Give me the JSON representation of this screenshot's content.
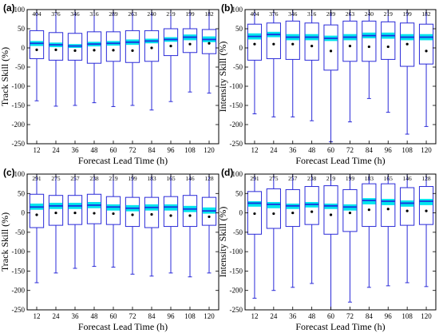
{
  "colors": {
    "box": "#2a2ad8",
    "iqr_band": "#00e5ee",
    "median": "#1a33dd",
    "mean": "#000000",
    "axis": "#000000"
  },
  "chart_data": [
    {
      "panel": "(a)",
      "type": "box",
      "xlabel": "Forecast Lead Time (h)",
      "ylabel": "Track Skill (%)",
      "ylim": [
        -250,
        100
      ],
      "yticks": [
        -250,
        -200,
        -150,
        -100,
        -50,
        0,
        50,
        100
      ],
      "categories": [
        "12",
        "24",
        "36",
        "48",
        "60",
        "72",
        "84",
        "96",
        "108",
        "120"
      ],
      "counts": [
        "404",
        "376",
        "346",
        "316",
        "289",
        "263",
        "240",
        "219",
        "199",
        "182"
      ],
      "whisker_max": [
        100,
        100,
        100,
        100,
        100,
        100,
        100,
        100,
        100,
        100
      ],
      "q3": [
        45,
        40,
        38,
        42,
        42,
        45,
        45,
        50,
        50,
        48
      ],
      "median": [
        12,
        8,
        5,
        10,
        12,
        15,
        18,
        22,
        28,
        22
      ],
      "q1": [
        -28,
        -32,
        -32,
        -40,
        -35,
        -38,
        -35,
        -20,
        -12,
        -15
      ],
      "whisker_min": [
        -138,
        -152,
        -150,
        -143,
        -153,
        -150,
        -162,
        -140,
        -115,
        -118
      ],
      "mean": [
        -5,
        -5,
        -7,
        -6,
        -6,
        -7,
        0,
        5,
        10,
        12
      ],
      "band": [
        [
          5,
          18
        ],
        [
          2,
          14
        ],
        [
          0,
          10
        ],
        [
          4,
          16
        ],
        [
          6,
          18
        ],
        [
          8,
          22
        ],
        [
          12,
          24
        ],
        [
          16,
          28
        ],
        [
          20,
          35
        ],
        [
          15,
          30
        ]
      ]
    },
    {
      "panel": "(b)",
      "type": "box",
      "xlabel": "Forecast Lead Time (h)",
      "ylabel": "Intensity Skill (%)",
      "ylim": [
        -250,
        100
      ],
      "yticks": [
        -250,
        -200,
        -150,
        -100,
        -50,
        0,
        50,
        100
      ],
      "categories": [
        "12",
        "24",
        "36",
        "48",
        "60",
        "72",
        "84",
        "96",
        "108",
        "120"
      ],
      "counts": [
        "404",
        "376",
        "346",
        "316",
        "289",
        "263",
        "240",
        "219",
        "199",
        "182"
      ],
      "whisker_max": [
        100,
        100,
        100,
        100,
        100,
        100,
        100,
        100,
        100,
        100
      ],
      "q3": [
        62,
        65,
        70,
        65,
        60,
        70,
        70,
        68,
        65,
        62
      ],
      "median": [
        30,
        35,
        28,
        28,
        25,
        28,
        32,
        32,
        28,
        28
      ],
      "q1": [
        -32,
        -28,
        -30,
        -32,
        -58,
        -35,
        -35,
        -30,
        -48,
        -42
      ],
      "whisker_min": [
        -172,
        -180,
        -180,
        -190,
        -245,
        -193,
        -132,
        -168,
        -225,
        -205
      ],
      "mean": [
        10,
        10,
        10,
        5,
        -8,
        5,
        3,
        3,
        10,
        -8
      ],
      "band": [
        [
          22,
          38
        ],
        [
          28,
          42
        ],
        [
          20,
          36
        ],
        [
          20,
          36
        ],
        [
          18,
          32
        ],
        [
          20,
          36
        ],
        [
          25,
          40
        ],
        [
          24,
          40
        ],
        [
          20,
          36
        ],
        [
          20,
          36
        ]
      ]
    },
    {
      "panel": "(c)",
      "type": "box",
      "xlabel": "Forecast Lead Time (h)",
      "ylabel": "Track Skill (%)",
      "ylim": [
        -250,
        100
      ],
      "yticks": [
        -250,
        -200,
        -150,
        -100,
        -50,
        0,
        50,
        100
      ],
      "categories": [
        "12",
        "24",
        "36",
        "48",
        "60",
        "72",
        "84",
        "96",
        "108",
        "120"
      ],
      "counts": [
        "291",
        "275",
        "257",
        "238",
        "219",
        "199",
        "183",
        "165",
        "146",
        "128"
      ],
      "whisker_max": [
        100,
        100,
        100,
        100,
        100,
        100,
        100,
        100,
        100,
        100
      ],
      "q3": [
        48,
        45,
        45,
        48,
        42,
        40,
        40,
        42,
        45,
        40
      ],
      "median": [
        15,
        18,
        18,
        20,
        15,
        12,
        14,
        15,
        10,
        5
      ],
      "q1": [
        -38,
        -32,
        -30,
        -28,
        -30,
        -35,
        -38,
        -35,
        -35,
        -32
      ],
      "whisker_min": [
        -180,
        -155,
        -143,
        -138,
        -140,
        -158,
        -163,
        -155,
        -165,
        -155
      ],
      "mean": [
        -5,
        0,
        0,
        -1,
        -2,
        -5,
        -4,
        -7,
        -7,
        -10
      ],
      "band": [
        [
          8,
          24
        ],
        [
          10,
          26
        ],
        [
          10,
          26
        ],
        [
          12,
          28
        ],
        [
          6,
          22
        ],
        [
          4,
          20
        ],
        [
          6,
          22
        ],
        [
          6,
          22
        ],
        [
          2,
          18
        ],
        [
          -2,
          14
        ]
      ]
    },
    {
      "panel": "(d)",
      "type": "box",
      "xlabel": "Forecast Lead Time (h)",
      "ylabel": "Intensity Skill (%)",
      "ylim": [
        -250,
        100
      ],
      "yticks": [
        -250,
        -200,
        -150,
        -100,
        -50,
        0,
        50,
        100
      ],
      "categories": [
        "12",
        "24",
        "36",
        "48",
        "60",
        "72",
        "84",
        "96",
        "108",
        "120"
      ],
      "counts": [
        "291",
        "275",
        "257",
        "238",
        "219",
        "199",
        "183",
        "165",
        "146",
        "128"
      ],
      "whisker_max": [
        100,
        100,
        100,
        100,
        100,
        100,
        100,
        100,
        100,
        100
      ],
      "q3": [
        55,
        62,
        60,
        68,
        70,
        60,
        75,
        75,
        65,
        68
      ],
      "median": [
        25,
        22,
        18,
        22,
        18,
        15,
        32,
        30,
        25,
        30
      ],
      "q1": [
        -55,
        -40,
        -35,
        -30,
        -55,
        -48,
        -35,
        -35,
        -32,
        -30
      ],
      "whisker_min": [
        -220,
        -200,
        -192,
        -182,
        -255,
        -230,
        -192,
        -188,
        -180,
        -190
      ],
      "mean": [
        -2,
        -2,
        0,
        3,
        -5,
        0,
        8,
        10,
        5,
        5
      ],
      "band": [
        [
          16,
          30
        ],
        [
          12,
          28
        ],
        [
          10,
          24
        ],
        [
          14,
          28
        ],
        [
          10,
          24
        ],
        [
          6,
          22
        ],
        [
          22,
          38
        ],
        [
          20,
          36
        ],
        [
          16,
          32
        ],
        [
          20,
          36
        ]
      ]
    }
  ]
}
